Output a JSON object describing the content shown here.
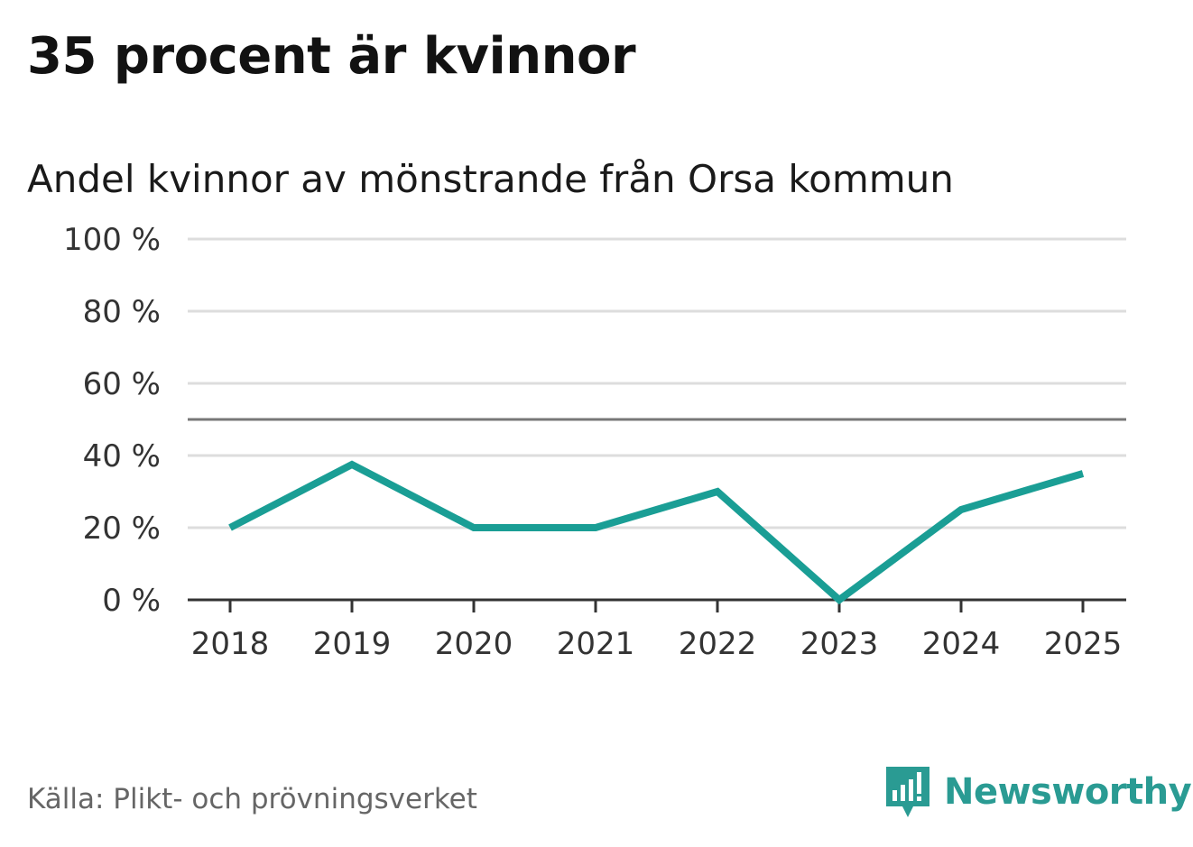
{
  "title": "35 procent är kvinnor",
  "subtitle": "Andel kvinnor av mönstrande från Orsa kommun",
  "source": "Källa: Plikt- och prövningsverket",
  "logo": {
    "text": "Newsworthy",
    "icon": "newsworthy-chart-bubble-icon"
  },
  "colors": {
    "line": "#1a9e95",
    "grid": "#dddddd",
    "reference": "#777777",
    "axis": "#333333",
    "logo": "#2a9b93"
  },
  "chart_data": {
    "type": "line",
    "categories": [
      "2018",
      "2019",
      "2020",
      "2021",
      "2022",
      "2023",
      "2024",
      "2025"
    ],
    "series": [
      {
        "values": [
          20,
          37.5,
          20,
          20,
          30,
          0,
          25,
          35
        ]
      }
    ],
    "ylim": [
      0,
      100
    ],
    "yticks": [
      0,
      20,
      40,
      60,
      80,
      100
    ],
    "ytick_labels": [
      "0 %",
      "20 %",
      "40 %",
      "60 %",
      "80 %",
      "100 %"
    ],
    "reference_line": 50,
    "grid": true,
    "legend": "none"
  }
}
